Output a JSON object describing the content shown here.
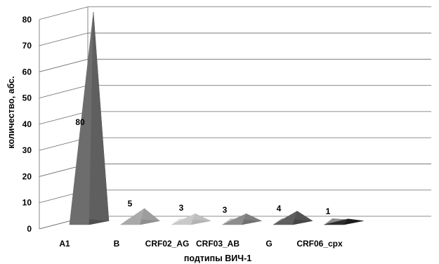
{
  "chart_data": {
    "type": "bar",
    "style": "3d-pyramid",
    "categories": [
      "A1",
      "B",
      "CRF02_AG",
      "CRF03_AB",
      "G",
      "CRF06_cpx"
    ],
    "values": [
      80,
      5,
      3,
      3,
      4,
      1
    ],
    "data_labels": [
      "80",
      "5",
      "3",
      "3",
      "4",
      "1"
    ],
    "title": "",
    "xlabel": "подтипы ВИЧ-1",
    "ylabel": "количество, абс.",
    "ylim": [
      0,
      80
    ],
    "yticks": [
      "0",
      "10",
      "20",
      "30",
      "40",
      "50",
      "60",
      "70",
      "80"
    ],
    "grid": true,
    "legend": "none",
    "colors": {
      "A1": [
        "#6e6e6e",
        "#4f4f4f"
      ],
      "B": [
        "#a9a9a9",
        "#8e8e8e"
      ],
      "CRF02_AG": [
        "#c9c9c9",
        "#b3b3b3"
      ],
      "CRF03_AB": [
        "#8d8d8d",
        "#707070"
      ],
      "G": [
        "#5f5f5f",
        "#454545"
      ],
      "CRF06_cpx": [
        "#2e2e2e",
        "#1c1c1c"
      ]
    }
  }
}
